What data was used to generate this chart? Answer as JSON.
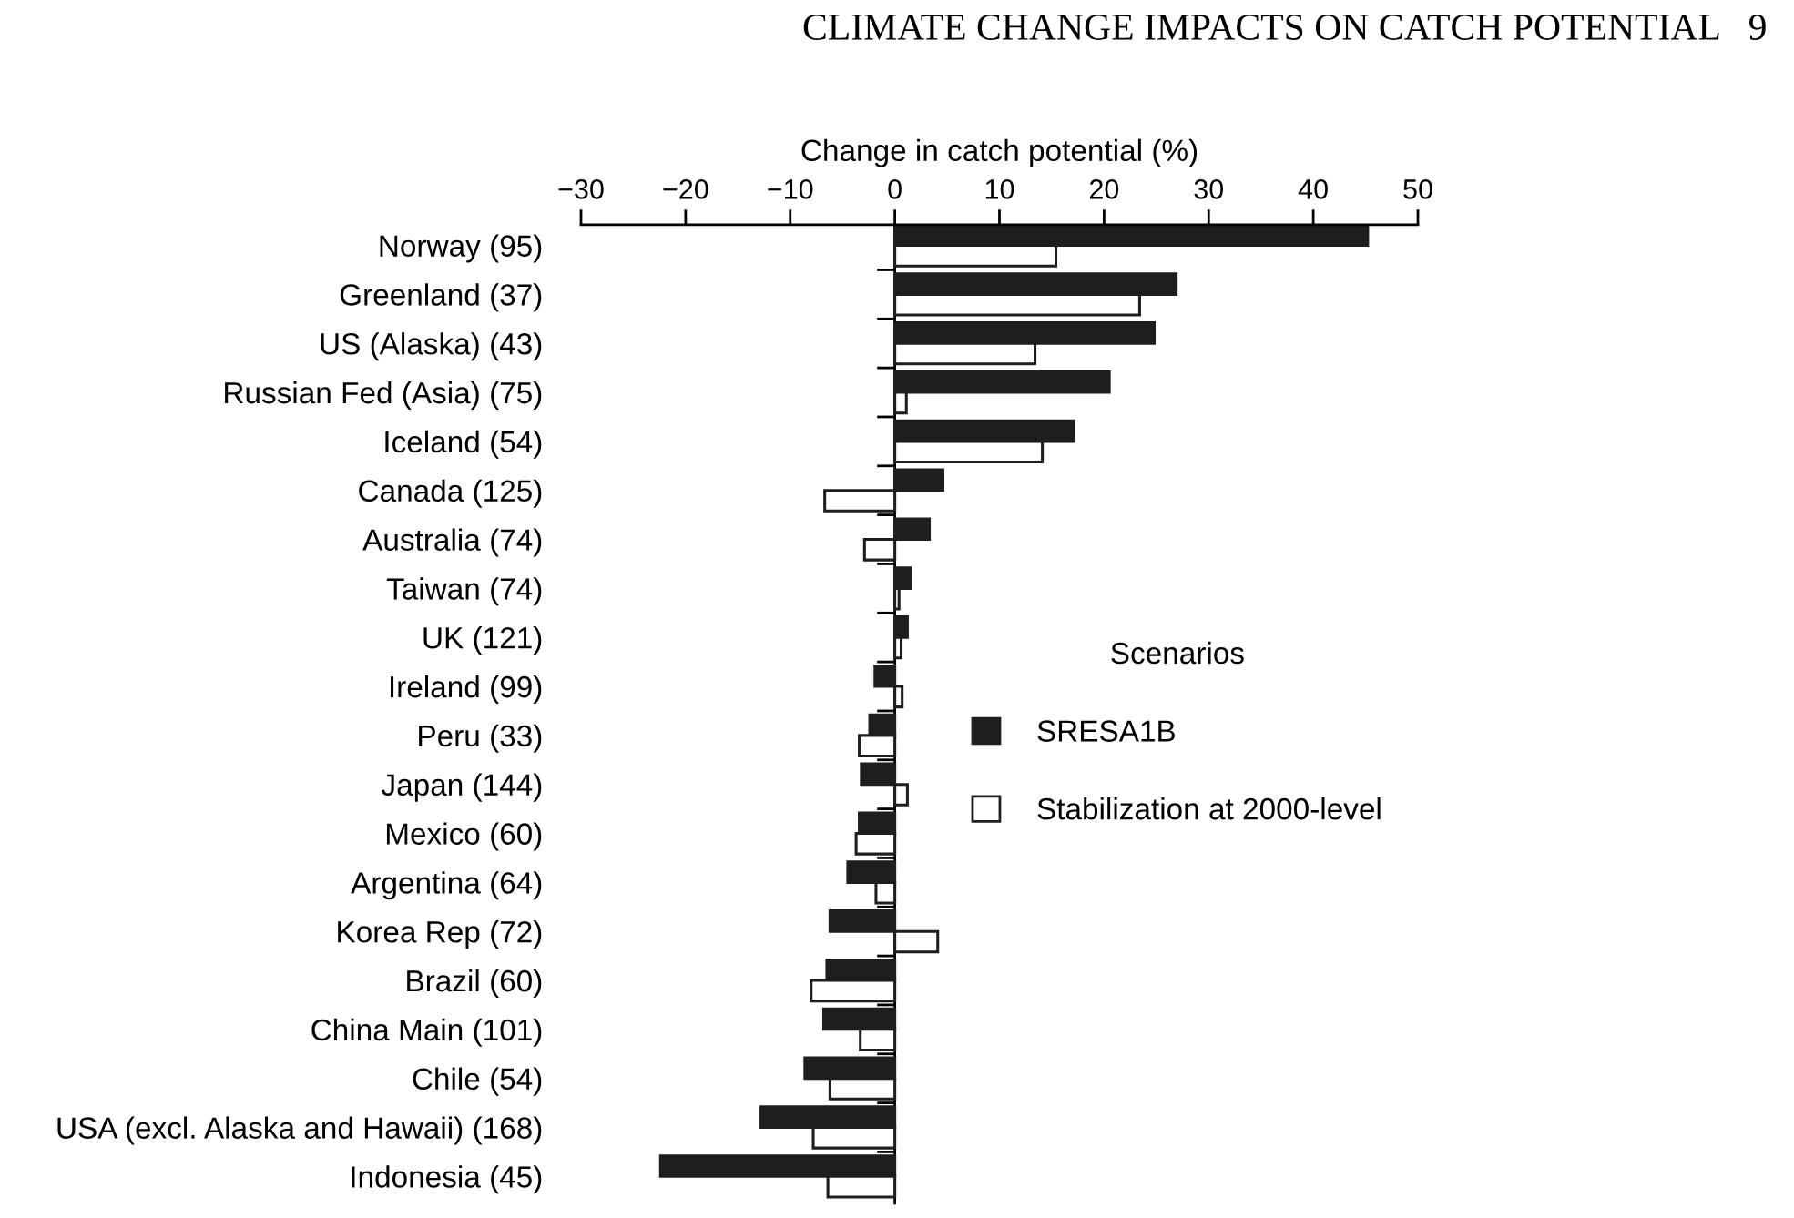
{
  "chart_data": {
    "type": "bar",
    "orientation": "horizontal",
    "xlabel": "Change in catch potential (%)",
    "annotations": [
      "CLIMATE CHANGE IMPACTS ON CATCH POTENTIAL   9"
    ],
    "categories": [
      "Norway (95)",
      "Greenland (37)",
      "US (Alaska) (43)",
      "Russian Fed (Asia) (75)",
      "Iceland (54)",
      "Canada (125)",
      "Australia (74)",
      "Taiwan (74)",
      "UK (121)",
      "Ireland (99)",
      "Peru (33)",
      "Japan (144)",
      "Mexico (60)",
      "Argentina (64)",
      "Korea Rep (72)",
      "Brazil (60)",
      "China Main (101)",
      "Chile (54)",
      "USA (excl. Alaska and Hawaii) (168)",
      "Indonesia (45)"
    ],
    "series": [
      {
        "name": "SRESA1B",
        "color": "#1e1e20",
        "values": [
          45.2,
          26.9,
          24.8,
          20.5,
          17.1,
          4.6,
          3.3,
          1.5,
          1.2,
          -1.9,
          -2.4,
          -3.2,
          -3.4,
          -4.5,
          -6.2,
          -6.5,
          -6.8,
          -8.6,
          -12.8,
          -22.4
        ]
      },
      {
        "name": "Stabilization at 2000-level",
        "color": "#ffffff",
        "values": [
          15.4,
          23.4,
          13.4,
          1.1,
          14.1,
          -6.7,
          -2.9,
          0.4,
          0.6,
          0.7,
          -3.4,
          1.2,
          -3.7,
          -1.8,
          4.1,
          -8.0,
          -3.3,
          -6.2,
          -7.8,
          -6.4
        ]
      }
    ],
    "legend_title": "Scenarios",
    "legend": "right",
    "xlim": [
      -30,
      50
    ],
    "xticks": [
      {
        "value": -30,
        "label": "−30"
      },
      {
        "value": -20,
        "label": "−20"
      },
      {
        "value": -10,
        "label": "−10"
      },
      0,
      10,
      20,
      30,
      40,
      50
    ]
  }
}
